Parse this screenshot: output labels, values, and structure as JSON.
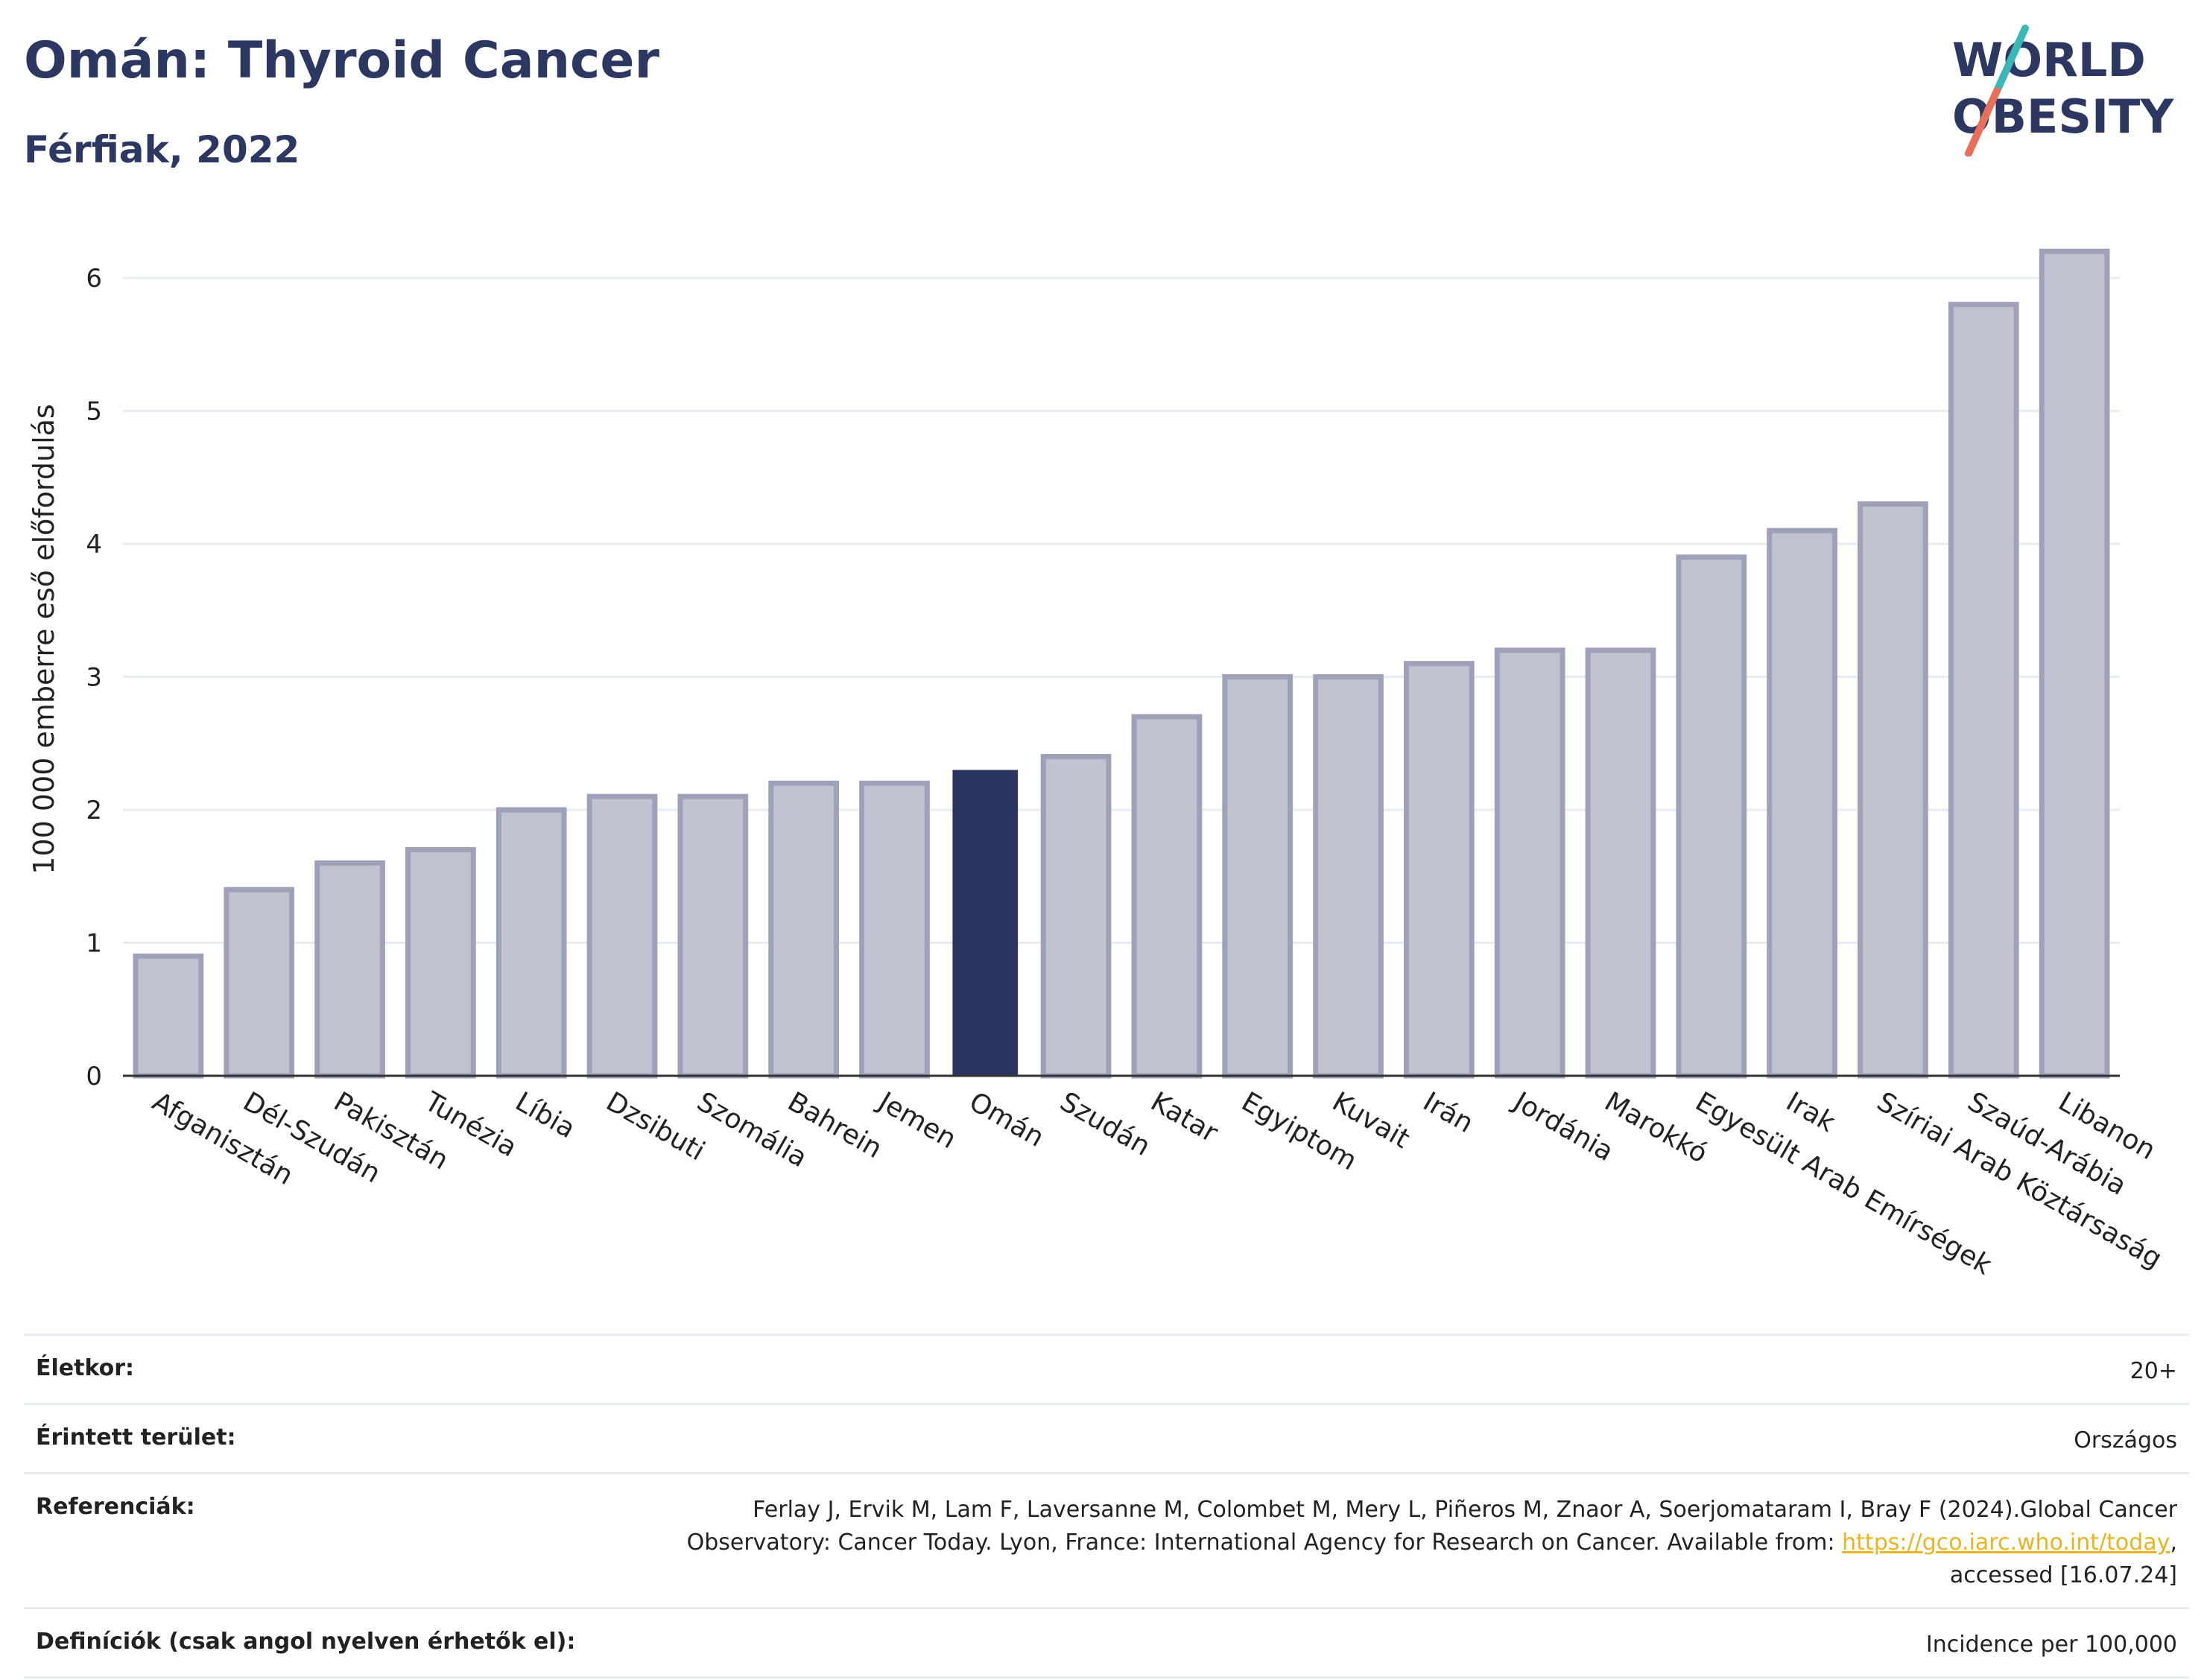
{
  "header": {
    "title": "Omán: Thyroid Cancer",
    "subtitle": "Férfiak, 2022",
    "logo_line1": "WORLD",
    "logo_line2": "OBESITY"
  },
  "colors": {
    "highlight": "#2b3660",
    "bar_fill": "#bfc2cf",
    "bar_stroke": "#9ea2b8",
    "title": "#2c3862",
    "logo_teal": "#3ab8b8",
    "logo_coral": "#e8705a",
    "link": "#e8b422"
  },
  "chart_data": {
    "type": "bar",
    "title": "",
    "xlabel": "",
    "ylabel": "100 000 emberre eső előfordulás",
    "ylim": [
      0,
      6.5
    ],
    "yticks": [
      0,
      1,
      2,
      3,
      4,
      5,
      6
    ],
    "grid": true,
    "highlight_category": "Omán",
    "categories": [
      "Afganisztán",
      "Dél-Szudán",
      "Pakisztán",
      "Tunézia",
      "Líbia",
      "Dzsibuti",
      "Szomália",
      "Bahrein",
      "Jemen",
      "Omán",
      "Szudán",
      "Katar",
      "Egyiptom",
      "Kuvait",
      "Irán",
      "Jordánia",
      "Marokkó",
      "Egyesült Arab Emírségek",
      "Irak",
      "Szíriai Arab Köztársaság",
      "Szaúd-Arábia",
      "Libanon"
    ],
    "values": [
      0.9,
      1.4,
      1.6,
      1.7,
      2.0,
      2.1,
      2.1,
      2.2,
      2.2,
      2.3,
      2.4,
      2.7,
      3.0,
      3.0,
      3.1,
      3.2,
      3.2,
      3.9,
      4.1,
      4.3,
      5.8,
      6.2
    ]
  },
  "info": {
    "age_label": "Életkor:",
    "age_value": "20+",
    "area_label": "Érintett terület:",
    "area_value": "Országos",
    "ref_label": "Referenciák:",
    "ref_text_1": "Ferlay J, Ervik M, Lam F, Laversanne M, Colombet M, Mery L, Piñeros M, Znaor A, Soerjomataram I, Bray F (2024).Global Cancer",
    "ref_text_2": "Observatory: Cancer Today. Lyon, France: International Agency for Research on Cancer. Available from: ",
    "ref_link": "https://gco.iarc.who.int/today",
    "ref_text_3": ",",
    "ref_text_4": "accessed [16.07.24]",
    "def_label": "Definíciók (csak angol nyelven érhetők el):",
    "def_value": "Incidence per 100,000"
  }
}
